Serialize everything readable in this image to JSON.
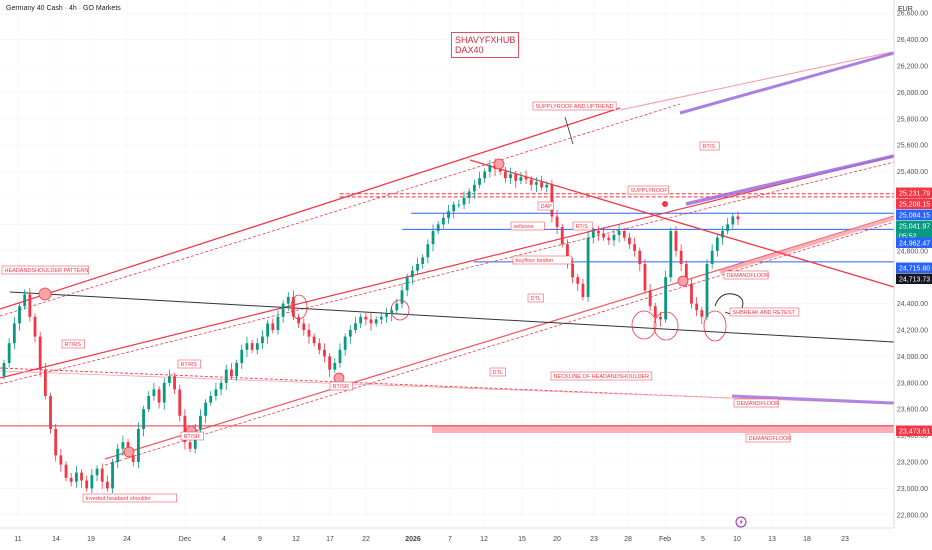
{
  "header": {
    "title": "Germany 40 Cash · 4h · GO Markets",
    "currency": "EUR"
  },
  "watermark": {
    "line1": "SHAVYFXHUB",
    "line2": "DAX40"
  },
  "chart_data": {
    "type": "candlestick",
    "ylim": [
      22700,
      26700
    ],
    "y_ticks": [
      22800,
      23000,
      23200,
      23400,
      23600,
      23800,
      24000,
      24200,
      24400,
      24600,
      24800,
      25000,
      25200,
      25400,
      25600,
      25800,
      26000,
      26200,
      26400,
      26600
    ],
    "x_ticks": [
      "11",
      "14",
      "19",
      "24",
      "Dec",
      "4",
      "9",
      "12",
      "17",
      "22",
      "2026",
      "7",
      "12",
      "15",
      "20",
      "23",
      "28",
      "Feb",
      "5",
      "10",
      "13",
      "18",
      "23"
    ],
    "price_labels": [
      {
        "text": "25,231.79",
        "value": 25231.79,
        "color": "#f23645"
      },
      {
        "text": "25,208.15",
        "value": 25208.15,
        "color": "#f23645"
      },
      {
        "text": "25,084.15",
        "value": 25084.15,
        "color": "#2962ff"
      },
      {
        "text": "25,041.97",
        "value": 25041.97,
        "color": "#089981"
      },
      {
        "text": "05:52",
        "value": 24990,
        "color": "#089981"
      },
      {
        "text": "24,962.47",
        "value": 24962.47,
        "color": "#2962ff"
      },
      {
        "text": "24,715.80",
        "value": 24715.8,
        "color": "#2962ff"
      },
      {
        "text": "24,713.73",
        "value": 24713.73,
        "color": "#131722"
      },
      {
        "text": "23,473.61",
        "value": 23473.61,
        "color": "#f23645"
      }
    ],
    "candles_close": [
      23950,
      24100,
      24250,
      24380,
      24470,
      24300,
      24150,
      23900,
      23700,
      23450,
      23250,
      23180,
      23080,
      23050,
      23120,
      23060,
      23000,
      23100,
      23150,
      23050,
      23000,
      23200,
      23300,
      23350,
      23250,
      23200,
      23450,
      23600,
      23700,
      23750,
      23650,
      23800,
      23850,
      23750,
      23550,
      23350,
      23300,
      23450,
      23550,
      23650,
      23700,
      23750,
      23800,
      23900,
      23850,
      23950,
      24050,
      24100,
      24050,
      24100,
      24150,
      24250,
      24200,
      24300,
      24400,
      24450,
      24300,
      24250,
      24200,
      24150,
      24100,
      24050,
      24000,
      23900,
      23950,
      24050,
      24150,
      24200,
      24250,
      24300,
      24280,
      24250,
      24280,
      24300,
      24320,
      24350,
      24400,
      24500,
      24600,
      24650,
      24700,
      24750,
      24850,
      24950,
      25000,
      25050,
      25100,
      25150,
      25150,
      25200,
      25250,
      25300,
      25350,
      25400,
      25450,
      25420,
      25400,
      25350,
      25380,
      25330,
      25360,
      25340,
      25300,
      25320,
      25280,
      25300,
      25060,
      24980,
      24850,
      24700,
      24600,
      24550,
      24450,
      24900,
      24950,
      24930,
      24900,
      24880,
      24920,
      24950,
      24900,
      24850,
      24800,
      24700,
      24500,
      24380,
      24300,
      24280,
      24600,
      24950,
      24800,
      24700,
      24550,
      24400,
      24350,
      24300,
      24700,
      24800,
      24900,
      24950,
      25000,
      25060,
      25040
    ],
    "horizontal_levels": [
      {
        "value": 25231.79,
        "color": "#f23645",
        "style": "dashed",
        "x_from": 0.38
      },
      {
        "value": 25208.15,
        "color": "#f23645",
        "style": "dashed",
        "x_from": 0.38
      },
      {
        "value": 25084.15,
        "color": "#2962ff",
        "style": "solid",
        "x_from": 0.46
      },
      {
        "value": 24962.47,
        "color": "#2962ff",
        "style": "solid",
        "x_from": 0.45
      },
      {
        "value": 24715.8,
        "color": "#2962ff",
        "style": "solid",
        "x_from": 0.53
      },
      {
        "value": 23473.61,
        "color": "#f23645",
        "style": "solid",
        "x_from": 0
      }
    ],
    "demand_zone": {
      "from": 23420,
      "to": 23480,
      "color": "#f7a1a8"
    },
    "annotations": [
      "SUPPLYROOF AND UPTREND",
      "SUPPLYROOF",
      "DAP",
      "sellzone",
      "RT/S",
      "buyfloor london",
      "DTL",
      "DEMANDFLOOR",
      "SHBREAK AND RETEST",
      "HEADANDSHOULDER PATTERN",
      "RT/RS",
      "RT/RS",
      "RT/SR",
      "RT/SR",
      "NECKLINE OF HEADANDSHOULDER",
      "DEMANDFLOOR",
      "DEMANDFLOOR",
      "Inverted headand shoulder",
      "RT/S",
      "DTL"
    ]
  }
}
